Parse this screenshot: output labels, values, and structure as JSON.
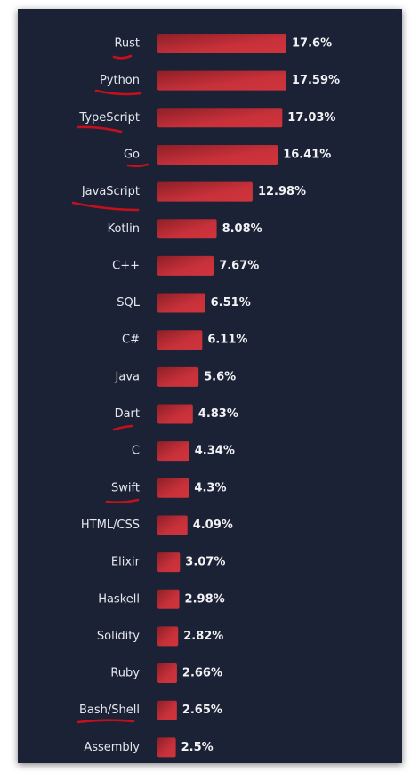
{
  "chart_data": {
    "type": "bar",
    "orientation": "horizontal",
    "categories": [
      "Rust",
      "Python",
      "TypeScript",
      "Go",
      "JavaScript",
      "Kotlin",
      "C++",
      "SQL",
      "C#",
      "Java",
      "Dart",
      "C",
      "Swift",
      "HTML/CSS",
      "Elixir",
      "Haskell",
      "Solidity",
      "Ruby",
      "Bash/Shell",
      "Assembly"
    ],
    "values": [
      17.6,
      17.59,
      17.03,
      16.41,
      12.98,
      8.08,
      7.67,
      6.51,
      6.11,
      5.6,
      4.83,
      4.34,
      4.3,
      4.09,
      3.07,
      2.98,
      2.82,
      2.66,
      2.65,
      2.5
    ],
    "value_labels": [
      "17.6%",
      "17.59%",
      "17.03%",
      "16.41%",
      "12.98%",
      "8.08%",
      "7.67%",
      "6.51%",
      "6.11%",
      "5.6%",
      "4.83%",
      "4.34%",
      "4.3%",
      "4.09%",
      "3.07%",
      "2.98%",
      "2.82%",
      "2.66%",
      "2.65%",
      "2.5%"
    ],
    "color": "#d0343c"
  }
}
